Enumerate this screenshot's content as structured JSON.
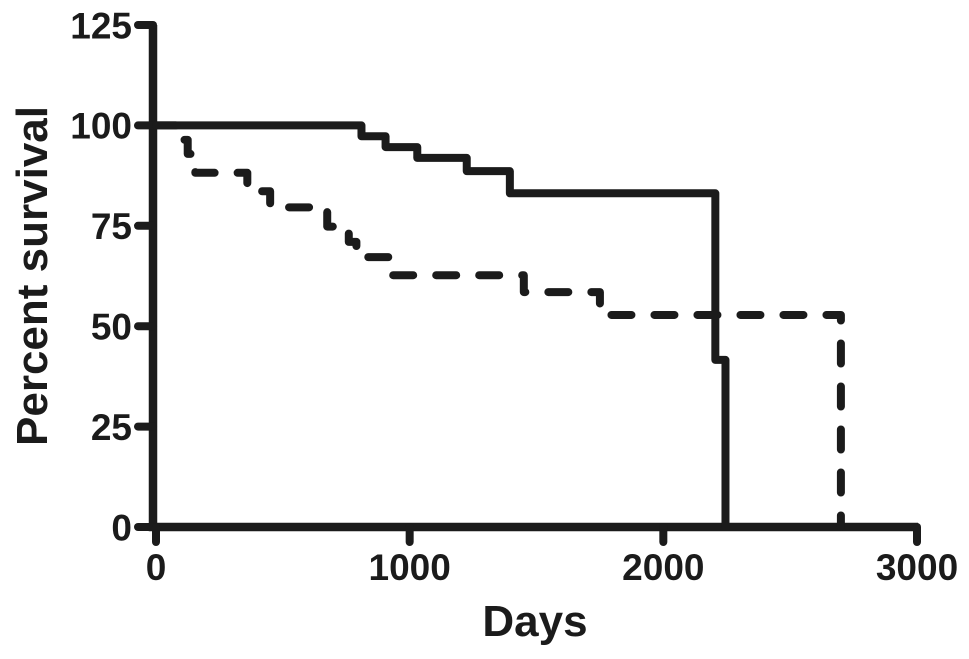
{
  "figure": {
    "background": "#ffffff",
    "ink_color": "#1b1b1b"
  },
  "chart_data": {
    "type": "line",
    "subtype": "kaplan_meier_step",
    "title": "",
    "xlabel": "Days",
    "ylabel": "Percent survival",
    "xlim": [
      0,
      3000
    ],
    "ylim": [
      0,
      125
    ],
    "xticks": [
      0,
      1000,
      2000,
      3000
    ],
    "yticks": [
      0,
      25,
      50,
      75,
      100,
      125
    ],
    "grid": false,
    "legend": "none",
    "series": [
      {
        "name": "solid-survival-curve",
        "line_style": "solid",
        "color": "#1b1b1b",
        "start": {
          "x": 0,
          "y": 100
        },
        "steps": [
          {
            "x": 810,
            "y": 97.3
          },
          {
            "x": 905,
            "y": 94.6
          },
          {
            "x": 1030,
            "y": 91.9
          },
          {
            "x": 1225,
            "y": 88.6
          },
          {
            "x": 1395,
            "y": 83.1
          },
          {
            "x": 2205,
            "y": 41.6
          },
          {
            "x": 2245,
            "y": 0
          }
        ]
      },
      {
        "name": "dashed-survival-curve",
        "line_style": "dashed",
        "color": "#1b1b1b",
        "start": {
          "x": 0,
          "y": 100
        },
        "steps": [
          {
            "x": 105,
            "y": 96.4
          },
          {
            "x": 125,
            "y": 92.9
          },
          {
            "x": 155,
            "y": 88.2
          },
          {
            "x": 360,
            "y": 83.6
          },
          {
            "x": 450,
            "y": 79.6
          },
          {
            "x": 675,
            "y": 74.8
          },
          {
            "x": 760,
            "y": 71.0
          },
          {
            "x": 790,
            "y": 67.2
          },
          {
            "x": 935,
            "y": 62.7
          },
          {
            "x": 1450,
            "y": 58.5
          },
          {
            "x": 1750,
            "y": 52.8
          },
          {
            "x": 2700,
            "y": 0
          }
        ]
      }
    ]
  }
}
